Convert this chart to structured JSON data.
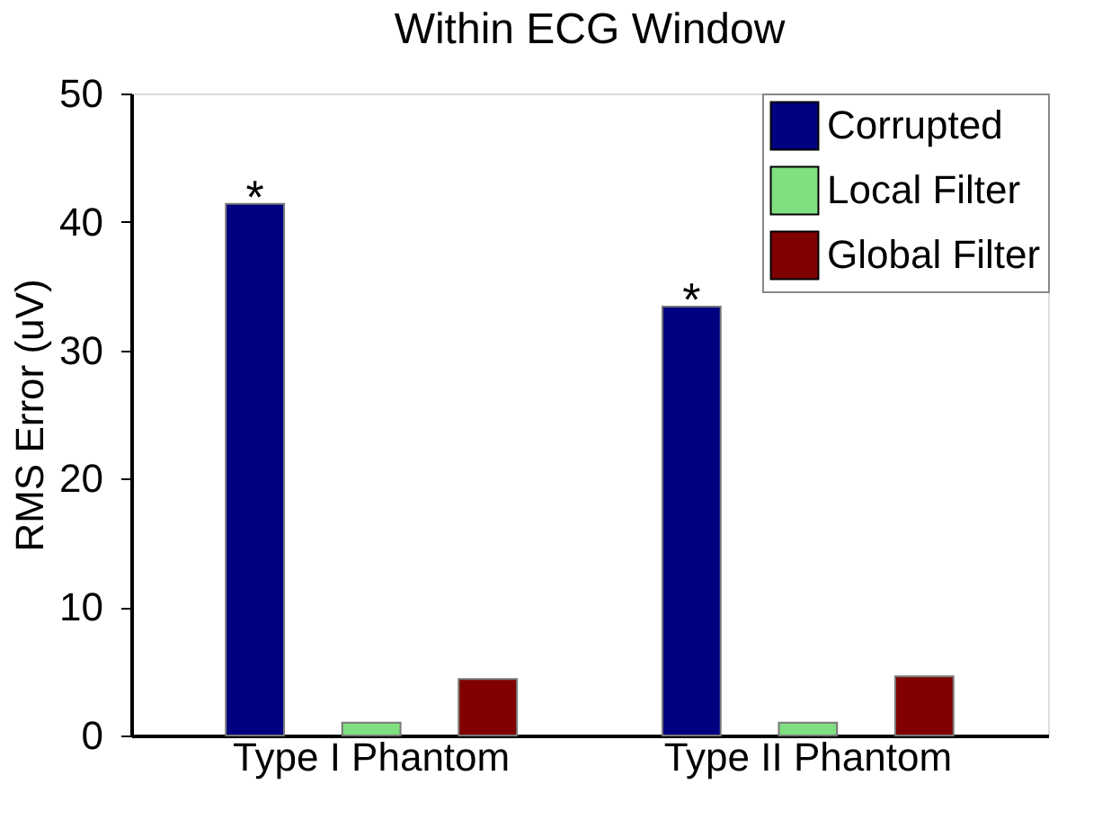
{
  "chart_data": {
    "type": "bar",
    "title": "Within ECG Window",
    "ylabel": "RMS Error (uV)",
    "categories": [
      "Type I Phantom",
      "Type II Phantom"
    ],
    "series": [
      {
        "name": "Corrupted",
        "color": "#000080",
        "values": [
          41.4,
          33.4
        ]
      },
      {
        "name": "Local Filter",
        "color": "#80e080",
        "values": [
          1.0,
          1.0
        ]
      },
      {
        "name": "Global Filter",
        "color": "#800000",
        "values": [
          4.4,
          4.6
        ]
      }
    ],
    "annotations": [
      "*",
      "*"
    ],
    "ylim": [
      0,
      50
    ],
    "yticks": [
      0,
      10,
      20,
      30,
      40,
      50
    ],
    "grid": false,
    "legend": "top right"
  }
}
